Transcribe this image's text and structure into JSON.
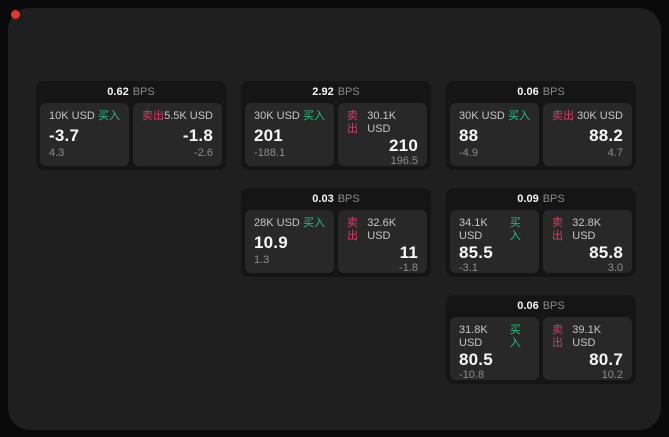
{
  "labels": {
    "bps": "BPS",
    "buy": "买入",
    "sell": "卖出"
  },
  "colors": {
    "page_bg": "#0a0a0a",
    "panel_bg": "#1f1f1f",
    "card_bg": "#151515",
    "tile_bg": "#282828",
    "buy_green": "#2ebd85",
    "sell_red": "#d14064",
    "indicator_red": "#e0372e"
  },
  "indicator": {
    "name": "recording-indicator",
    "color": "#e0372e"
  },
  "cards": [
    {
      "row": 1,
      "col": 1,
      "bps": "0.62",
      "buy": {
        "amount": "10K USD",
        "price": "-3.7",
        "delta": "4.3"
      },
      "sell": {
        "amount": "5.5K USD",
        "price": "-1.8",
        "delta": "-2.6"
      }
    },
    {
      "row": 1,
      "col": 2,
      "bps": "2.92",
      "buy": {
        "amount": "30K USD",
        "price": "201",
        "delta": "-188.1"
      },
      "sell": {
        "amount": "30.1K USD",
        "price": "210",
        "delta": "196.5"
      }
    },
    {
      "row": 1,
      "col": 3,
      "bps": "0.06",
      "buy": {
        "amount": "30K USD",
        "price": "88",
        "delta": "-4.9"
      },
      "sell": {
        "amount": "30K USD",
        "price": "88.2",
        "delta": "4.7"
      }
    },
    {
      "row": 2,
      "col": 2,
      "bps": "0.03",
      "buy": {
        "amount": "28K USD",
        "price": "10.9",
        "delta": "1.3"
      },
      "sell": {
        "amount": "32.6K USD",
        "price": "11",
        "delta": "-1.8"
      }
    },
    {
      "row": 2,
      "col": 3,
      "bps": "0.09",
      "buy": {
        "amount": "34.1K USD",
        "price": "85.5",
        "delta": "-3.1"
      },
      "sell": {
        "amount": "32.8K USD",
        "price": "85.8",
        "delta": "3.0"
      }
    },
    {
      "row": 3,
      "col": 3,
      "bps": "0.06",
      "buy": {
        "amount": "31.8K USD",
        "price": "80.5",
        "delta": "-10.8"
      },
      "sell": {
        "amount": "39.1K USD",
        "price": "80.7",
        "delta": "10.2"
      }
    }
  ]
}
